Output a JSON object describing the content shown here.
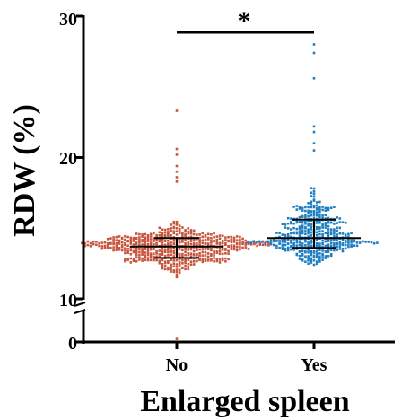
{
  "chart_data": {
    "type": "scatter",
    "subtype": "beeswarm dot plot with median and interquartile range",
    "title": "",
    "xlabel": "Enlarged spleen",
    "ylabel": "RDW (%)",
    "categories": [
      "No",
      "Yes"
    ],
    "y_axis": {
      "segments": [
        {
          "range": [
            0,
            2
          ],
          "ticks": [
            "0"
          ]
        },
        {
          "range": [
            10,
            30
          ],
          "ticks": [
            "10",
            "20",
            "30"
          ]
        }
      ],
      "broken": true
    },
    "significance": {
      "label": "*",
      "between": [
        "No",
        "Yes"
      ]
    },
    "series": [
      {
        "color": "#c8553d",
        "n": 560,
        "median": 13.7,
        "q1": 12.9,
        "q3": 14.3,
        "min_shown": 11.5,
        "outliers": [
          23.3,
          20.6,
          20.2,
          19.4,
          19.0,
          18.6,
          18.3
        ]
      },
      {
        "color": "#1f7fc3",
        "n": 420,
        "median": 14.3,
        "q1": 13.6,
        "q3": 15.6,
        "min_shown": 11.5,
        "outliers": [
          28.0,
          27.4,
          25.6,
          22.2,
          21.8,
          21.0,
          20.5
        ]
      }
    ],
    "grid": false,
    "legend": "none"
  }
}
